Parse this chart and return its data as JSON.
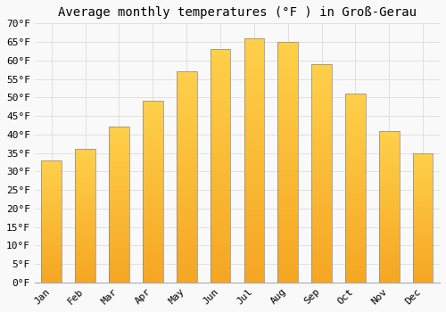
{
  "title": "Average monthly temperatures (°F ) in Groß­Gerau",
  "months": [
    "Jan",
    "Feb",
    "Mar",
    "Apr",
    "May",
    "Jun",
    "Jul",
    "Aug",
    "Sep",
    "Oct",
    "Nov",
    "Dec"
  ],
  "values": [
    33,
    36,
    42,
    49,
    57,
    63,
    66,
    65,
    59,
    51,
    41,
    35
  ],
  "bar_color_top": "#FFD04A",
  "bar_color_bottom": "#F5A623",
  "bar_edge_color": "#888888",
  "ylim": [
    0,
    70
  ],
  "yticks": [
    0,
    5,
    10,
    15,
    20,
    25,
    30,
    35,
    40,
    45,
    50,
    55,
    60,
    65,
    70
  ],
  "ytick_labels": [
    "0°F",
    "5°F",
    "10°F",
    "15°F",
    "20°F",
    "25°F",
    "30°F",
    "35°F",
    "40°F",
    "45°F",
    "50°F",
    "55°F",
    "60°F",
    "65°F",
    "70°F"
  ],
  "background_color": "#f9f9f9",
  "grid_color": "#e0e0e0",
  "title_fontsize": 10,
  "tick_fontsize": 8,
  "font_family": "monospace",
  "bar_width": 0.6
}
